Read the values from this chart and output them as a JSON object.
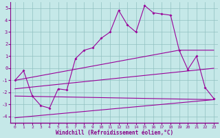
{
  "xlabel": "Windchill (Refroidissement éolien,°C)",
  "background_color": "#c5e8e8",
  "line_color": "#990099",
  "grid_color": "#a0c8c8",
  "xlim": [
    -0.5,
    23.5
  ],
  "ylim": [
    -4.5,
    5.5
  ],
  "yticks": [
    -4,
    -3,
    -2,
    -1,
    0,
    1,
    2,
    3,
    4,
    5
  ],
  "xticks": [
    0,
    1,
    2,
    3,
    4,
    5,
    6,
    7,
    8,
    9,
    10,
    11,
    12,
    13,
    14,
    15,
    16,
    17,
    18,
    19,
    20,
    21,
    22,
    23
  ],
  "series1_x": [
    0,
    1,
    2,
    3,
    4,
    5,
    6,
    7,
    8,
    9,
    10,
    11,
    12,
    13,
    14,
    15,
    16,
    17,
    18,
    19,
    20,
    21,
    22,
    23
  ],
  "series1_y": [
    -1.0,
    -0.2,
    -2.3,
    -3.1,
    -3.3,
    -1.7,
    -1.8,
    0.8,
    1.5,
    1.7,
    2.5,
    3.0,
    4.8,
    3.6,
    3.0,
    5.2,
    4.6,
    4.5,
    4.4,
    1.5,
    -0.1,
    1.0,
    -1.6,
    -2.5
  ],
  "series2_x": [
    0,
    19,
    23
  ],
  "series2_y": [
    -1.0,
    1.5,
    1.5
  ],
  "series3_x": [
    0,
    23
  ],
  "series3_y": [
    -1.7,
    0.0
  ],
  "series4_x": [
    0,
    23
  ],
  "series4_y": [
    -2.3,
    -2.6
  ],
  "series5_x": [
    0,
    23
  ],
  "series5_y": [
    -4.1,
    -2.6
  ]
}
